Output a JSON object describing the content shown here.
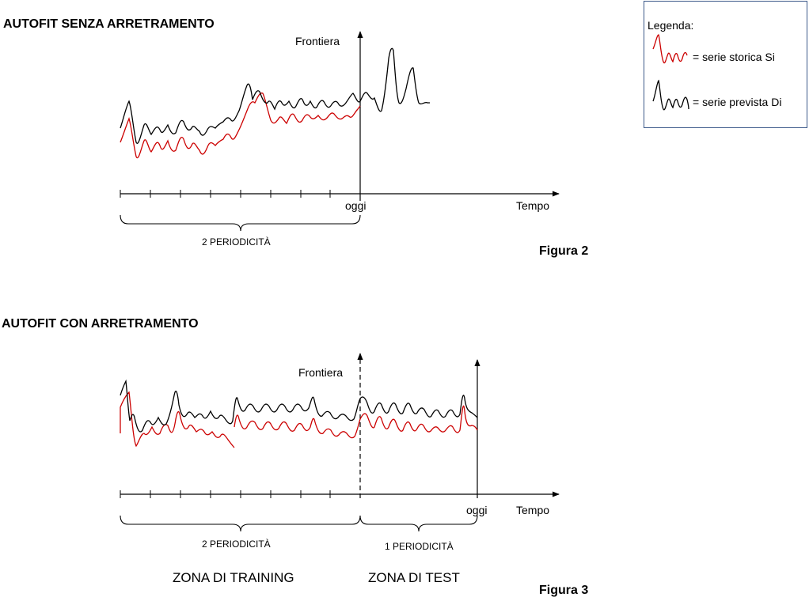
{
  "figure2": {
    "heading": "AUTOFIT SENZA ARRETRAMENTO",
    "boundary_label": "Frontiera",
    "today_label": "oggi",
    "time_label": "Tempo",
    "brace_label": "2 PERIODICITÀ",
    "caption": "Figura 2"
  },
  "figure3": {
    "heading": "AUTOFIT CON ARRETRAMENTO",
    "boundary_label": "Frontiera",
    "today_label": "oggi",
    "time_label": "Tempo",
    "brace_training_label": "2 PERIODICITÀ",
    "brace_test_label": "1 PERIODICITÀ",
    "zone_training": "ZONA DI TRAINING",
    "zone_test": "ZONA DI TEST",
    "caption": "Figura 3"
  },
  "legend": {
    "title": "Legenda:",
    "historical": "= serie storica Si",
    "forecast": "= serie prevista Di"
  },
  "colors": {
    "historical": "#cc0000",
    "forecast": "#000000",
    "legend_border": "#3d5a8a"
  }
}
